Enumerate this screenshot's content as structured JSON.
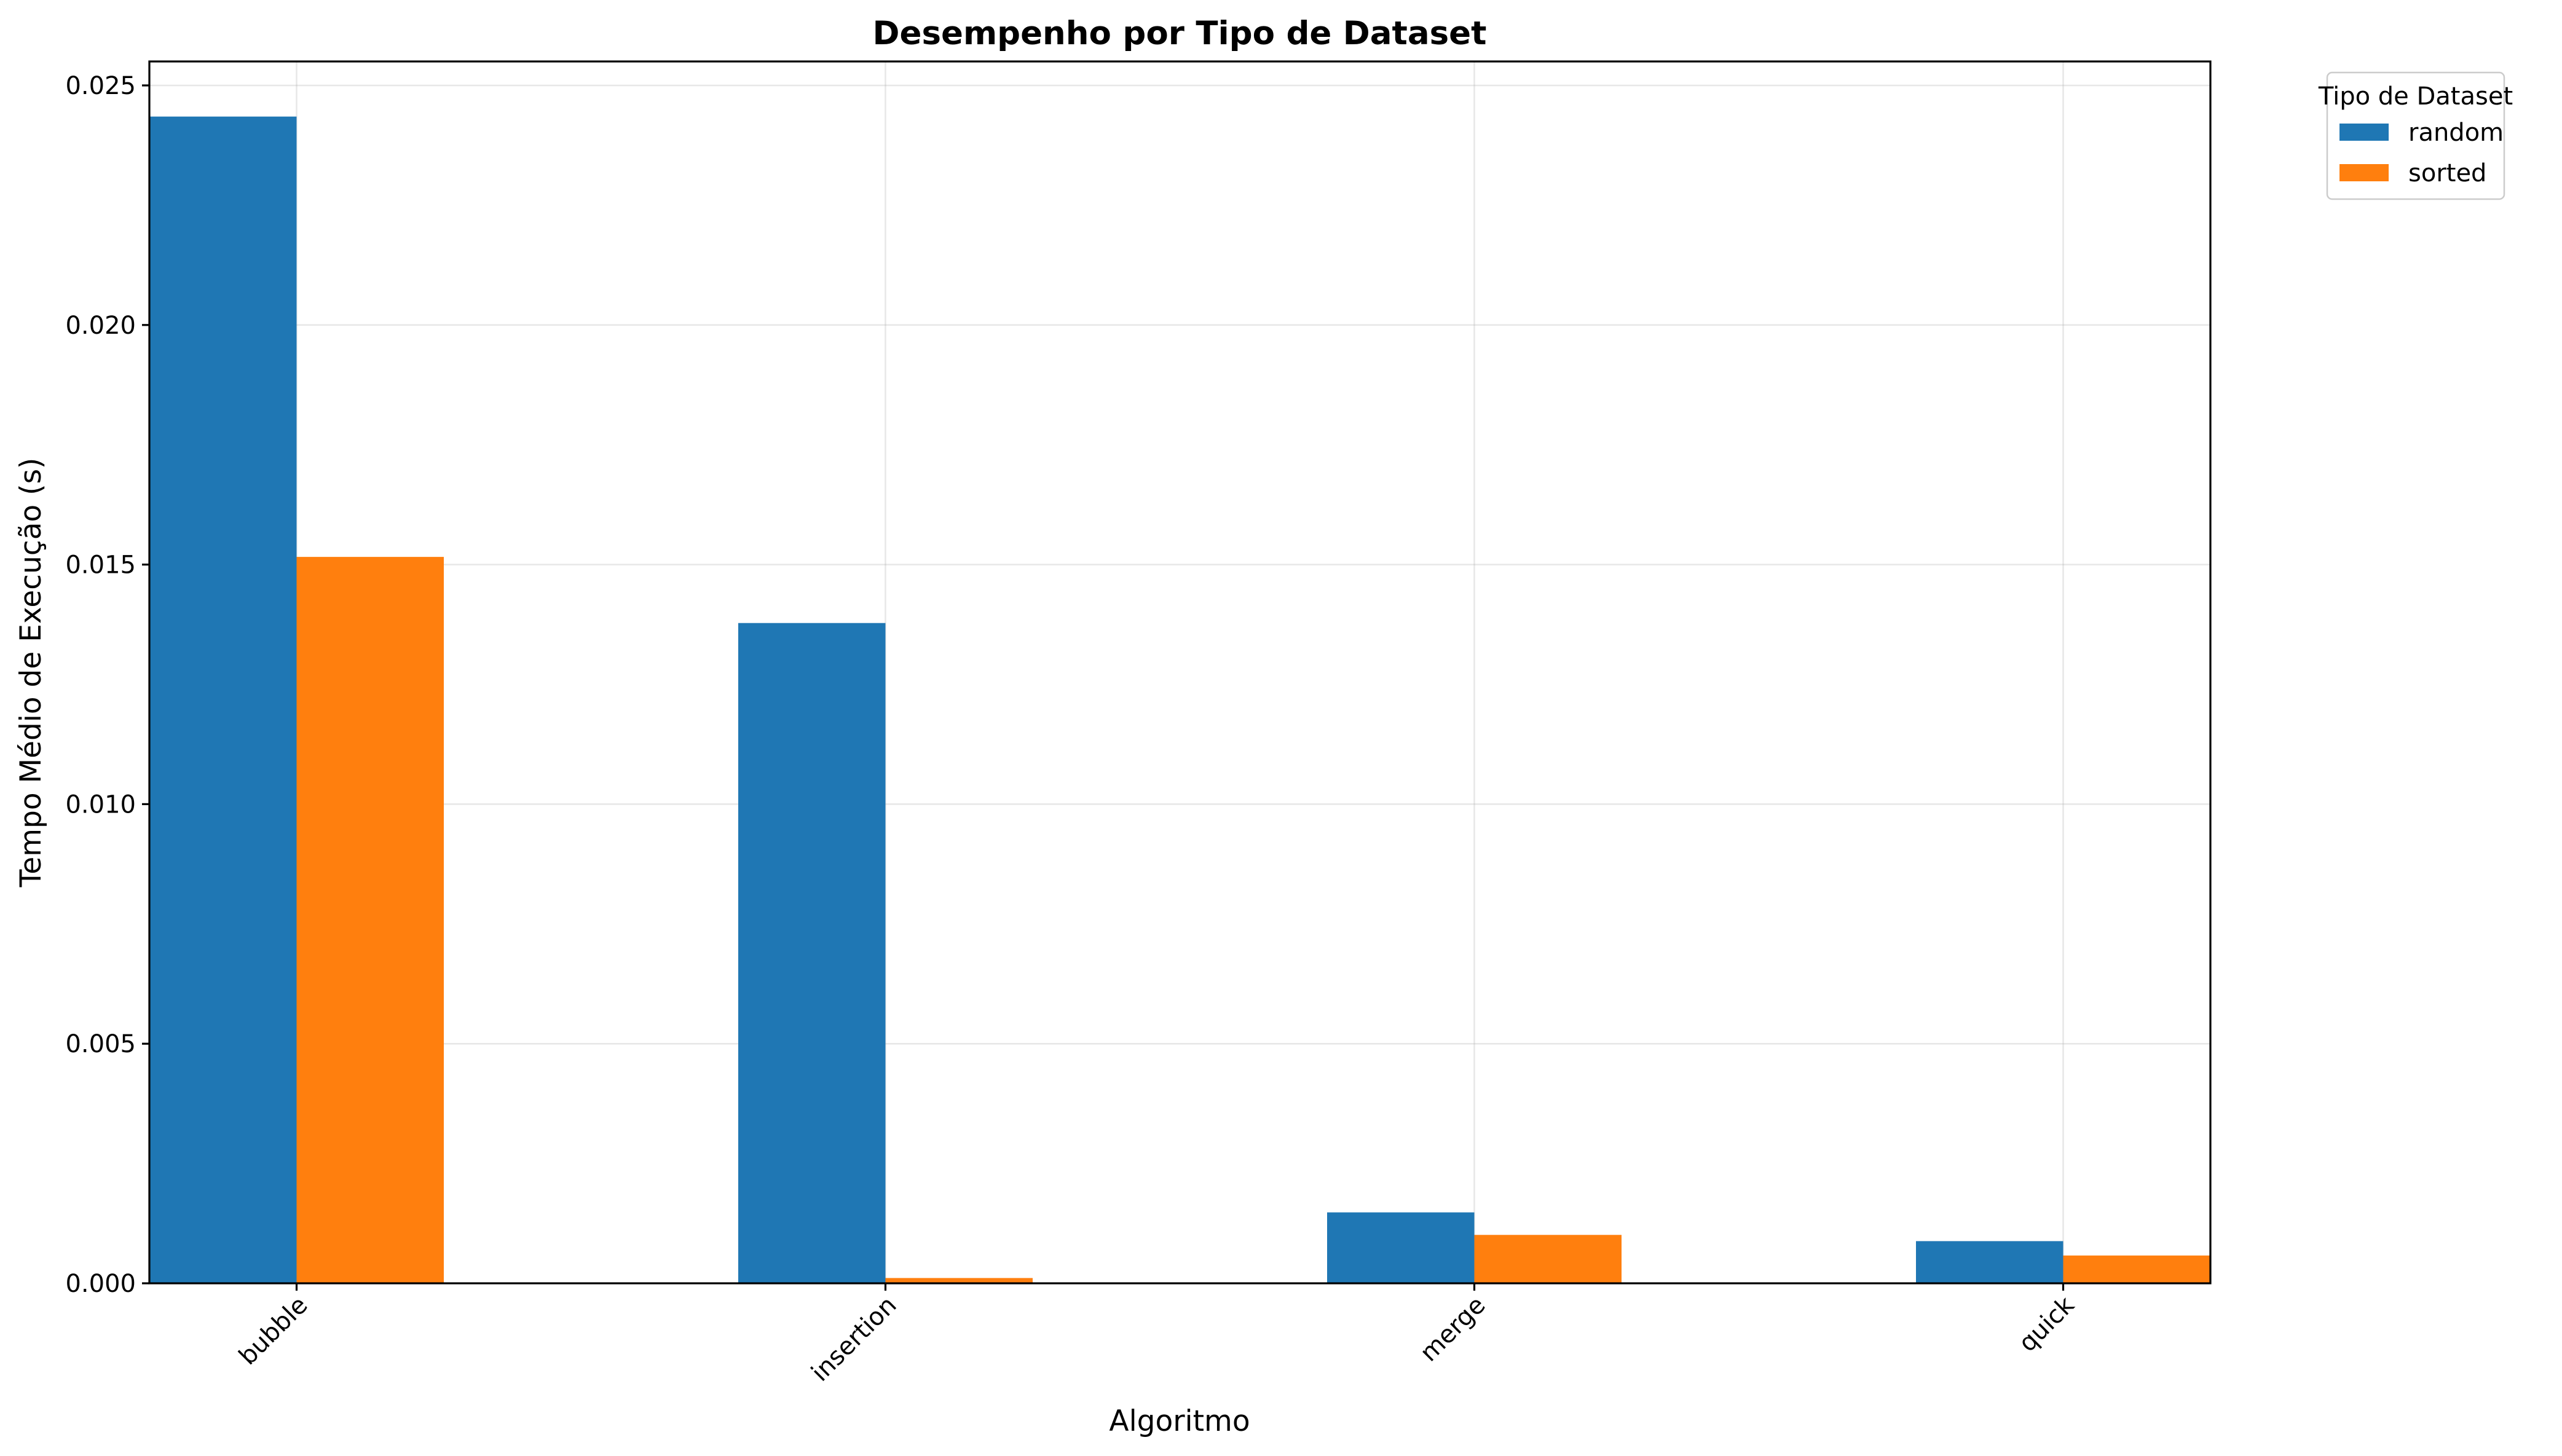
{
  "chart_data": {
    "type": "bar",
    "title": "Desempenho por Tipo de Dataset",
    "xlabel": "Algoritmo",
    "ylabel": "Tempo Médio de Execução (s)",
    "categories": [
      "bubble",
      "insertion",
      "merge",
      "quick"
    ],
    "series": [
      {
        "name": "random",
        "color": "#1f77b4",
        "values": [
          0.02435,
          0.01378,
          0.00148,
          0.00088
        ]
      },
      {
        "name": "sorted",
        "color": "#ff7f0e",
        "values": [
          0.01516,
          0.00011,
          0.00101,
          0.00058
        ]
      }
    ],
    "ylim": [
      0,
      0.0255
    ],
    "yticks": [
      "0.000",
      "0.005",
      "0.010",
      "0.015",
      "0.020",
      "0.025"
    ],
    "ytick_values": [
      0,
      0.005,
      0.01,
      0.015,
      0.02,
      0.025
    ],
    "grid": true,
    "legend": {
      "title": "Tipo de Dataset",
      "placement": "outside-top-right"
    }
  }
}
